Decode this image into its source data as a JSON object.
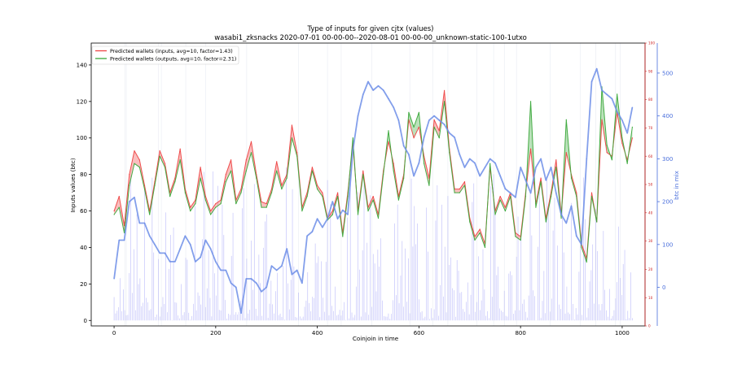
{
  "chart_data": {
    "type": "line",
    "title": "Type of inputs for given cjtx (values)",
    "subtitle": "wasabi1_zksnacks 2020-07-01 00-00-00--2020-08-01 00-00-00_unknown-static-100-1utxo",
    "xlabel": "Coinjoin in time",
    "ylabel": "Inputs values (btc)",
    "ylabel_right_outer": "btc in mix",
    "xlim": [
      -45,
      1045
    ],
    "ylim": [
      -3,
      152
    ],
    "ylim_right_inner": [
      0,
      100
    ],
    "ylim_right_outer": [
      -90,
      570
    ],
    "x_ticks": [
      0,
      200,
      400,
      600,
      800,
      1000
    ],
    "y_ticks": [
      0,
      20,
      40,
      60,
      80,
      100,
      120,
      140
    ],
    "right_inner_ticks": [
      0,
      10,
      20,
      30,
      40,
      50,
      60,
      70,
      80,
      90,
      100
    ],
    "right_outer_ticks": [
      0,
      100,
      200,
      300,
      400,
      500
    ],
    "legend_position": "top-left",
    "grid": false,
    "series": [
      {
        "name": "Predicted wallets (inputs, avg=10, factor=1.43)",
        "color": "#ee4444",
        "axis": "left",
        "x": [
          0,
          10,
          20,
          30,
          40,
          50,
          60,
          70,
          80,
          90,
          100,
          110,
          120,
          130,
          140,
          150,
          160,
          170,
          180,
          190,
          200,
          210,
          220,
          230,
          240,
          250,
          260,
          270,
          280,
          290,
          300,
          310,
          320,
          330,
          340,
          350,
          360,
          370,
          380,
          390,
          400,
          410,
          420,
          430,
          440,
          450,
          460,
          470,
          480,
          490,
          500,
          510,
          520,
          530,
          540,
          550,
          560,
          570,
          580,
          590,
          600,
          610,
          620,
          630,
          640,
          650,
          660,
          670,
          680,
          690,
          700,
          710,
          720,
          730,
          740,
          750,
          760,
          770,
          780,
          790,
          800,
          810,
          820,
          830,
          840,
          850,
          860,
          870,
          880,
          890,
          900,
          910,
          920,
          930,
          940,
          950,
          960,
          970,
          980,
          990,
          1000,
          1010,
          1020
        ],
        "y": [
          60,
          68,
          52,
          80,
          93,
          88,
          74,
          60,
          76,
          93,
          86,
          70,
          78,
          94,
          72,
          62,
          66,
          84,
          68,
          60,
          64,
          66,
          80,
          88,
          66,
          72,
          88,
          98,
          80,
          65,
          64,
          72,
          87,
          74,
          80,
          107,
          92,
          62,
          70,
          84,
          74,
          70,
          56,
          60,
          70,
          48,
          70,
          97,
          60,
          82,
          62,
          68,
          58,
          82,
          98,
          86,
          68,
          80,
          110,
          100,
          106,
          90,
          78,
          110,
          104,
          126,
          94,
          72,
          72,
          76,
          56,
          46,
          50,
          42,
          84,
          60,
          68,
          62,
          70,
          48,
          46,
          70,
          94,
          64,
          78,
          56,
          70,
          88,
          58,
          92,
          80,
          70,
          42,
          34,
          70,
          54,
          110,
          92,
          90,
          114,
          97,
          88,
          100
        ]
      },
      {
        "name": "Predicted wallets (outputs, avg=10, factor=2.31)",
        "color": "#3aa83a",
        "axis": "left",
        "x": [
          0,
          10,
          20,
          30,
          40,
          50,
          60,
          70,
          80,
          90,
          100,
          110,
          120,
          130,
          140,
          150,
          160,
          170,
          180,
          190,
          200,
          210,
          220,
          230,
          240,
          250,
          260,
          270,
          280,
          290,
          300,
          310,
          320,
          330,
          340,
          350,
          360,
          370,
          380,
          390,
          400,
          410,
          420,
          430,
          440,
          450,
          460,
          470,
          480,
          490,
          500,
          510,
          520,
          530,
          540,
          550,
          560,
          570,
          580,
          590,
          600,
          610,
          620,
          630,
          640,
          650,
          660,
          670,
          680,
          690,
          700,
          710,
          720,
          730,
          740,
          750,
          760,
          770,
          780,
          790,
          800,
          810,
          820,
          830,
          840,
          850,
          860,
          870,
          880,
          890,
          900,
          910,
          920,
          930,
          940,
          950,
          960,
          970,
          980,
          990,
          1000,
          1010,
          1020
        ],
        "y": [
          58,
          62,
          48,
          74,
          86,
          84,
          72,
          58,
          74,
          90,
          84,
          68,
          76,
          88,
          70,
          60,
          64,
          78,
          66,
          58,
          62,
          64,
          76,
          82,
          64,
          70,
          82,
          92,
          78,
          62,
          62,
          70,
          82,
          72,
          78,
          100,
          90,
          60,
          68,
          82,
          72,
          68,
          55,
          58,
          68,
          46,
          68,
          100,
          58,
          80,
          60,
          66,
          56,
          80,
          104,
          82,
          66,
          78,
          114,
          106,
          114,
          86,
          74,
          106,
          100,
          120,
          92,
          70,
          70,
          74,
          54,
          44,
          48,
          40,
          86,
          58,
          66,
          60,
          68,
          46,
          44,
          68,
          120,
          62,
          76,
          54,
          68,
          84,
          56,
          110,
          78,
          68,
          40,
          32,
          68,
          54,
          128,
          96,
          88,
          124,
          100,
          86,
          106
        ]
      },
      {
        "name": "btc in mix",
        "color": "#6d8ee8",
        "axis": "right_outer",
        "x": [
          0,
          10,
          20,
          30,
          40,
          50,
          60,
          70,
          80,
          90,
          100,
          110,
          120,
          130,
          140,
          150,
          160,
          170,
          180,
          190,
          200,
          210,
          220,
          230,
          240,
          250,
          260,
          270,
          280,
          290,
          300,
          310,
          320,
          330,
          340,
          350,
          360,
          370,
          380,
          390,
          400,
          410,
          420,
          430,
          440,
          450,
          460,
          470,
          480,
          490,
          500,
          510,
          520,
          530,
          540,
          550,
          560,
          570,
          580,
          590,
          600,
          610,
          620,
          630,
          640,
          650,
          660,
          670,
          680,
          690,
          700,
          710,
          720,
          730,
          740,
          750,
          760,
          770,
          780,
          790,
          800,
          810,
          820,
          830,
          840,
          850,
          860,
          870,
          880,
          890,
          900,
          910,
          920,
          930,
          940,
          950,
          960,
          970,
          980,
          990,
          1000,
          1010,
          1020
        ],
        "y": [
          20,
          110,
          110,
          200,
          210,
          150,
          150,
          120,
          100,
          80,
          80,
          60,
          60,
          90,
          120,
          100,
          60,
          70,
          110,
          90,
          60,
          40,
          40,
          10,
          0,
          -60,
          20,
          20,
          10,
          -10,
          0,
          50,
          40,
          50,
          90,
          30,
          40,
          10,
          120,
          130,
          160,
          140,
          160,
          200,
          160,
          180,
          170,
          320,
          400,
          450,
          480,
          460,
          470,
          460,
          440,
          420,
          390,
          330,
          310,
          260,
          290,
          350,
          390,
          400,
          390,
          380,
          360,
          350,
          310,
          280,
          300,
          290,
          260,
          280,
          300,
          290,
          260,
          230,
          220,
          210,
          280,
          250,
          220,
          280,
          300,
          250,
          280,
          220,
          170,
          150,
          190,
          120,
          100,
          300,
          480,
          510,
          460,
          450,
          440,
          410,
          390,
          360,
          420
        ]
      }
    ]
  }
}
